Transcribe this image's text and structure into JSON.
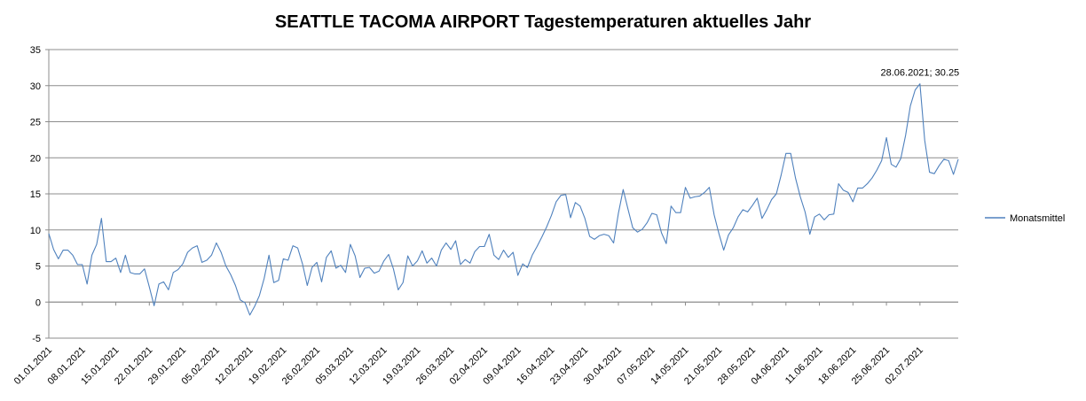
{
  "chart_data": {
    "type": "line",
    "title": "SEATTLE TACOMA AIRPORT Tagestemperaturen aktuelles Jahr",
    "xlabel": "",
    "ylabel": "",
    "ylim": [
      -5,
      35
    ],
    "yticks": [
      "-5",
      "0",
      "5",
      "10",
      "15",
      "20",
      "25",
      "30",
      "35"
    ],
    "grid": true,
    "legend_position": "right",
    "x_tick_labels": [
      "01.01.2021",
      "08.01.2021",
      "15.01.2021",
      "22.01.2021",
      "29.01.2021",
      "05.02.2021",
      "12.02.2021",
      "19.02.2021",
      "26.02.2021",
      "05.03.2021",
      "12.03.2021",
      "19.03.2021",
      "26.03.2021",
      "02.04.2021",
      "09.04.2021",
      "16.04.2021",
      "23.04.2021",
      "30.04.2021",
      "07.05.2021",
      "14.05.2021",
      "21.05.2021",
      "28.05.2021",
      "04.06.2021",
      "11.06.2021",
      "18.06.2021",
      "25.06.2021",
      "02.07.2021"
    ],
    "x_start": "01.01.2021",
    "annotation": {
      "text": "28.06.2021; 30.25",
      "x": "28.06.2021",
      "y": 30.25
    },
    "series": [
      {
        "name": "Monatsmittel",
        "color": "#4f81bd",
        "values": [
          9.5,
          7.3,
          6.0,
          7.2,
          7.2,
          6.5,
          5.2,
          5.2,
          2.5,
          6.5,
          8.0,
          11.6,
          5.6,
          5.6,
          6.1,
          4.1,
          6.5,
          4.1,
          3.9,
          3.9,
          4.6,
          2.1,
          -0.5,
          2.5,
          2.8,
          1.7,
          4.1,
          4.5,
          5.3,
          6.9,
          7.5,
          7.8,
          5.5,
          5.8,
          6.5,
          8.2,
          6.9,
          5.0,
          3.8,
          2.3,
          0.3,
          -0.1,
          -1.8,
          -0.6,
          0.9,
          3.3,
          6.5,
          2.7,
          3.0,
          6.0,
          5.8,
          7.8,
          7.5,
          5.3,
          2.3,
          4.8,
          5.5,
          2.8,
          6.2,
          7.1,
          4.7,
          5.1,
          4.1,
          8.0,
          6.4,
          3.4,
          4.7,
          4.8,
          4.0,
          4.3,
          5.7,
          6.6,
          4.6,
          1.7,
          2.7,
          6.4,
          5.0,
          5.7,
          7.1,
          5.4,
          6.1,
          5.0,
          7.2,
          8.2,
          7.3,
          8.5,
          5.2,
          5.9,
          5.4,
          7.0,
          7.7,
          7.7,
          9.4,
          6.5,
          5.9,
          7.2,
          6.2,
          6.9,
          3.7,
          5.3,
          4.8,
          6.5,
          7.7,
          9.0,
          10.4,
          12.0,
          13.9,
          14.8,
          14.9,
          11.7,
          13.8,
          13.3,
          11.6,
          9.1,
          8.7,
          9.2,
          9.4,
          9.2,
          8.2,
          12.3,
          15.6,
          12.9,
          10.3,
          9.7,
          10.1,
          11.0,
          12.3,
          12.1,
          9.6,
          8.1,
          13.3,
          12.4,
          12.4,
          15.9,
          14.4,
          14.6,
          14.7,
          15.2,
          15.9,
          12.1,
          9.5,
          7.2,
          9.3,
          10.3,
          11.8,
          12.8,
          12.5,
          13.4,
          14.4,
          11.6,
          12.8,
          14.2,
          15.0,
          17.6,
          20.6,
          20.6,
          17.2,
          14.6,
          12.5,
          9.4,
          11.8,
          12.2,
          11.4,
          12.1,
          12.2,
          16.4,
          15.5,
          15.2,
          13.9,
          15.8,
          15.8,
          16.4,
          17.2,
          18.3,
          19.6,
          22.8,
          19.1,
          18.7,
          19.9,
          23.1,
          27.2,
          29.4,
          30.25,
          22.4,
          18.0,
          17.8,
          18.9,
          19.8,
          19.6,
          17.7,
          19.8
        ]
      }
    ]
  }
}
